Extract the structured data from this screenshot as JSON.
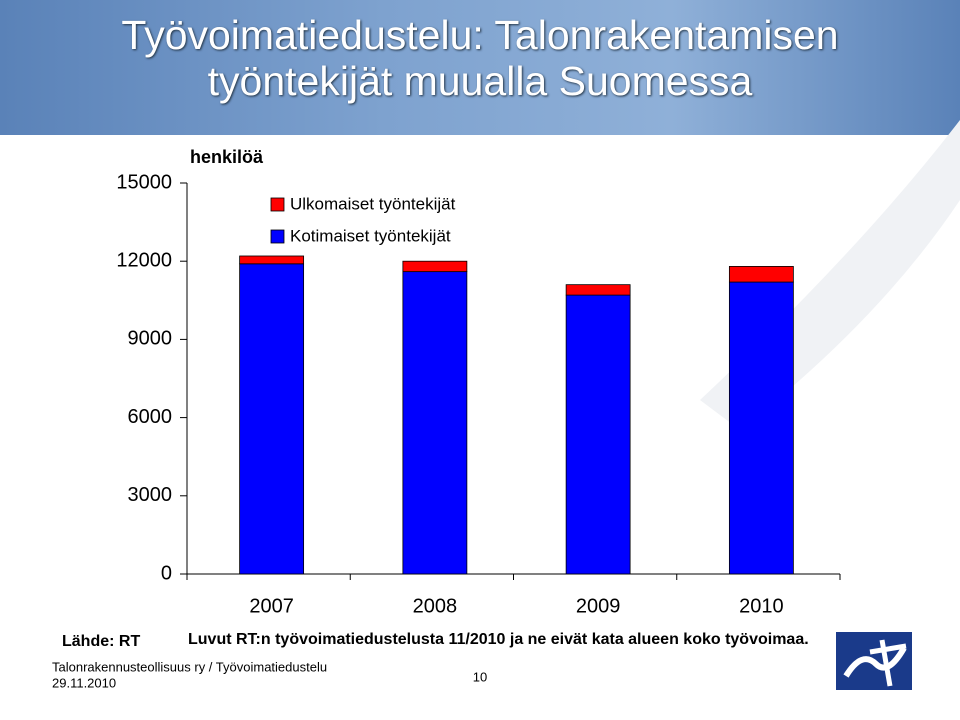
{
  "chart_data": {
    "type": "stacked-bar",
    "title": "Työvoimatiedustelu: Talonrakentamisen työntekijät muualla Suomessa",
    "y_label": "henkilöä",
    "categories": [
      "2007",
      "2008",
      "2009",
      "2010"
    ],
    "series": [
      {
        "name": "Kotimaiset työntekijät",
        "color": "#0000ff",
        "values": [
          11900,
          11600,
          10700,
          11200
        ]
      },
      {
        "name": "Ulkomaiset työntekijät",
        "color": "#ff0000",
        "values": [
          300,
          400,
          400,
          600
        ]
      }
    ],
    "ylim": [
      0,
      15000
    ],
    "yticks": [
      0,
      3000,
      6000,
      9000,
      12000,
      15000
    ],
    "grid": false
  },
  "slide": {
    "source": "Lähde: RT",
    "note": "Luvut RT:n työvoimatiedustelusta 11/2010 ja ne eivät kata alueen koko työvoimaa.",
    "footer": "Talonrakennusteollisuus ry / Työvoimatiedustelu",
    "date": "29.11.2010",
    "page_number": "10"
  }
}
